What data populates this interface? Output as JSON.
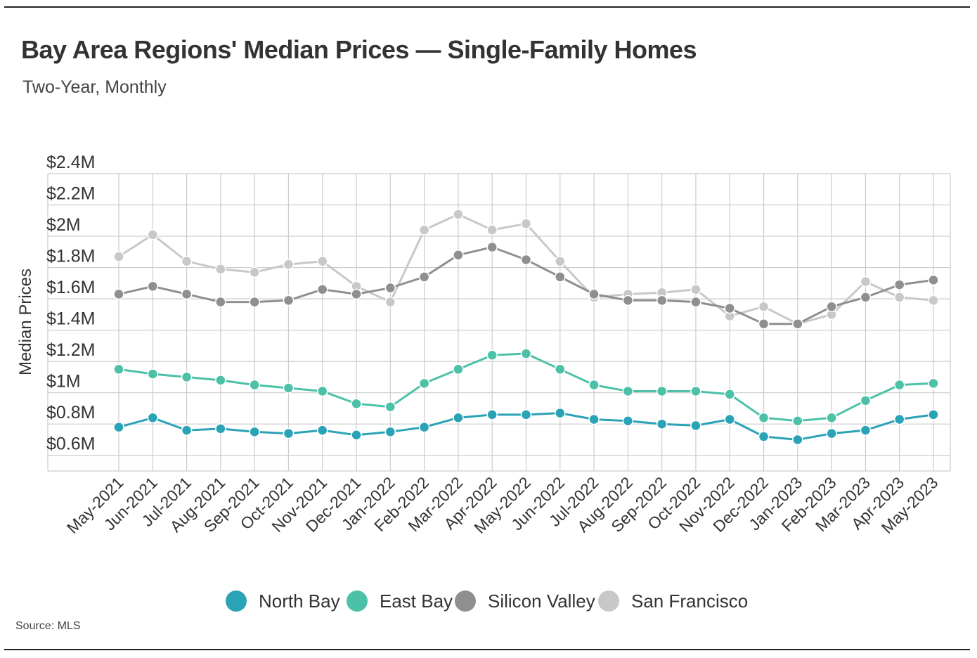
{
  "header": {
    "title": "Bay Area Regions' Median Prices — Single-Family Homes",
    "subtitle": "Two-Year, Monthly"
  },
  "footer": {
    "source": "Source:  MLS"
  },
  "colors": {
    "north_bay": "#2aa3b7",
    "east_bay": "#4cc1a8",
    "silicon_valley": "#8f8f8f",
    "san_francisco": "#c8c8c8",
    "grid": "#cccccc"
  },
  "chart_data": {
    "type": "line",
    "title": "Bay Area Regions' Median Prices — Single-Family Homes",
    "subtitle": "Two-Year, Monthly",
    "ylabel": "Median Prices",
    "xlabel": "",
    "ylim": [
      0.5,
      2.4
    ],
    "y_ticks": [
      0.6,
      0.8,
      1.0,
      1.2,
      1.4,
      1.6,
      1.8,
      2.0,
      2.2,
      2.4
    ],
    "y_tick_labels": [
      "$0.6M",
      "$0.8M",
      "$1M",
      "$1.2M",
      "$1.4M",
      "$1.6M",
      "$1.8M",
      "$2M",
      "$2.2M",
      "$2.4M"
    ],
    "grid": true,
    "legend_position": "bottom",
    "categories": [
      "May-2021",
      "Jun-2021",
      "Jul-2021",
      "Aug-2021",
      "Sep-2021",
      "Oct-2021",
      "Nov-2021",
      "Dec-2021",
      "Jan-2022",
      "Feb-2022",
      "Mar-2022",
      "Apr-2022",
      "May-2022",
      "Jun-2022",
      "Jul-2022",
      "Aug-2022",
      "Sep-2022",
      "Oct-2022",
      "Nov-2022",
      "Dec-2022",
      "Jan-2023",
      "Feb-2023",
      "Mar-2023",
      "Apr-2023",
      "May-2023"
    ],
    "series": [
      {
        "name": "San Francisco",
        "color": "#c8c8c8",
        "values": [
          1.87,
          2.01,
          1.84,
          1.79,
          1.77,
          1.82,
          1.84,
          1.68,
          1.58,
          2.04,
          2.14,
          2.04,
          2.08,
          1.84,
          1.61,
          1.63,
          1.64,
          1.66,
          1.49,
          1.55,
          1.44,
          1.5,
          1.71,
          1.61,
          1.59
        ]
      },
      {
        "name": "Silicon Valley",
        "color": "#8f8f8f",
        "values": [
          1.63,
          1.68,
          1.63,
          1.58,
          1.58,
          1.59,
          1.66,
          1.63,
          1.67,
          1.74,
          1.88,
          1.93,
          1.85,
          1.74,
          1.63,
          1.59,
          1.59,
          1.58,
          1.54,
          1.44,
          1.44,
          1.55,
          1.61,
          1.69,
          1.72
        ]
      },
      {
        "name": "East Bay",
        "color": "#4cc1a8",
        "values": [
          1.15,
          1.12,
          1.1,
          1.08,
          1.05,
          1.03,
          1.01,
          0.93,
          0.91,
          1.06,
          1.15,
          1.24,
          1.25,
          1.15,
          1.05,
          1.01,
          1.01,
          1.01,
          0.99,
          0.84,
          0.82,
          0.84,
          0.95,
          1.05,
          1.06
        ]
      },
      {
        "name": "North Bay",
        "color": "#2aa3b7",
        "values": [
          0.78,
          0.84,
          0.76,
          0.77,
          0.75,
          0.74,
          0.76,
          0.73,
          0.75,
          0.78,
          0.84,
          0.86,
          0.86,
          0.87,
          0.83,
          0.82,
          0.8,
          0.79,
          0.83,
          0.72,
          0.7,
          0.74,
          0.76,
          0.83,
          0.86
        ]
      }
    ]
  },
  "legend": [
    {
      "label": "North Bay",
      "color": "#2aa3b7"
    },
    {
      "label": "East Bay",
      "color": "#4cc1a8"
    },
    {
      "label": "Silicon Valley",
      "color": "#8f8f8f"
    },
    {
      "label": "San Francisco",
      "color": "#c8c8c8"
    }
  ]
}
